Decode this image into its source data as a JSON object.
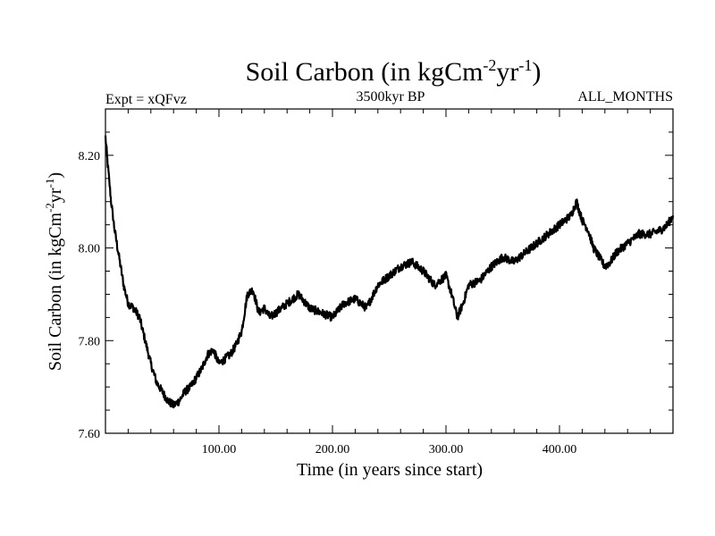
{
  "chart_data": {
    "type": "line",
    "title": {
      "prefix": "Soil Carbon (in kgCm",
      "exp1": "-2",
      "mid": "yr",
      "exp2": "-1",
      "suffix": ")"
    },
    "subtitle_left": "Expt = xQFvz",
    "subtitle_center": "3500kyr BP",
    "subtitle_right": "ALL_MONTHS",
    "xlabel": "Time (in years since start)",
    "ylabel": {
      "prefix": "Soil Carbon (in kgCm",
      "exp1": "-2",
      "mid": "yr",
      "exp2": "-1",
      "suffix": ")"
    },
    "xlim": [
      0,
      500
    ],
    "ylim": [
      7.6,
      8.3
    ],
    "x_ticks": [
      100,
      200,
      300,
      400
    ],
    "x_tick_labels": [
      "100.00",
      "200.00",
      "300.00",
      "400.00"
    ],
    "y_ticks": [
      7.6,
      7.8,
      8.0,
      8.2
    ],
    "y_tick_labels": [
      "7.60",
      "7.80",
      "8.00",
      "8.20"
    ],
    "grid": false,
    "series": [
      {
        "name": "Soil Carbon",
        "color": "#000000",
        "x": [
          0,
          2,
          5,
          8,
          12,
          16,
          20,
          25,
          30,
          35,
          40,
          45,
          50,
          55,
          60,
          65,
          70,
          75,
          80,
          85,
          90,
          95,
          100,
          105,
          110,
          115,
          120,
          125,
          130,
          135,
          140,
          145,
          150,
          160,
          170,
          180,
          190,
          200,
          210,
          220,
          230,
          240,
          250,
          260,
          270,
          280,
          290,
          300,
          305,
          310,
          315,
          320,
          330,
          340,
          350,
          360,
          370,
          380,
          390,
          400,
          410,
          415,
          420,
          425,
          430,
          435,
          440,
          445,
          450,
          460,
          470,
          480,
          490,
          495,
          500
        ],
        "y": [
          8.24,
          8.18,
          8.1,
          8.04,
          7.98,
          7.92,
          7.88,
          7.87,
          7.85,
          7.8,
          7.75,
          7.71,
          7.69,
          7.67,
          7.66,
          7.67,
          7.69,
          7.7,
          7.72,
          7.74,
          7.77,
          7.78,
          7.75,
          7.76,
          7.77,
          7.79,
          7.82,
          7.9,
          7.91,
          7.86,
          7.87,
          7.85,
          7.86,
          7.88,
          7.9,
          7.87,
          7.86,
          7.85,
          7.88,
          7.89,
          7.87,
          7.92,
          7.94,
          7.96,
          7.97,
          7.95,
          7.92,
          7.94,
          7.9,
          7.85,
          7.88,
          7.92,
          7.93,
          7.96,
          7.98,
          7.97,
          7.99,
          8.01,
          8.03,
          8.05,
          8.07,
          8.1,
          8.06,
          8.04,
          8.0,
          7.98,
          7.96,
          7.97,
          7.99,
          8.01,
          8.03,
          8.03,
          8.04,
          8.05,
          8.07
        ]
      }
    ]
  }
}
